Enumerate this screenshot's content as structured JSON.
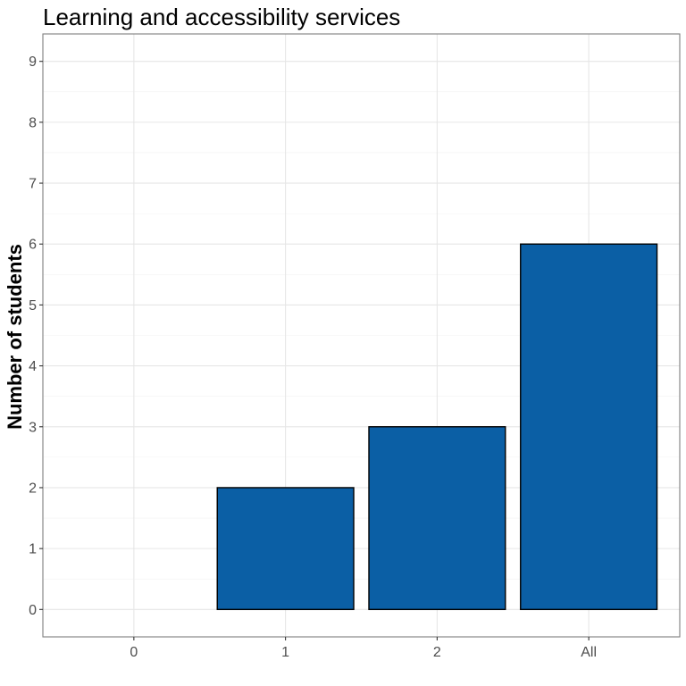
{
  "chart_data": {
    "type": "bar",
    "title": "Learning and accessibility services",
    "xlabel": "",
    "ylabel": "Number of students",
    "categories": [
      "0",
      "1",
      "2",
      "All"
    ],
    "values": [
      0,
      2,
      3,
      6
    ],
    "ylim": [
      -0.45,
      9.45
    ],
    "yticks": [
      0,
      1,
      2,
      3,
      4,
      5,
      6,
      7,
      8,
      9
    ],
    "bar_color": "#0b5fa5",
    "bar_border_color": "#000000",
    "grid": true,
    "legend": "none"
  }
}
